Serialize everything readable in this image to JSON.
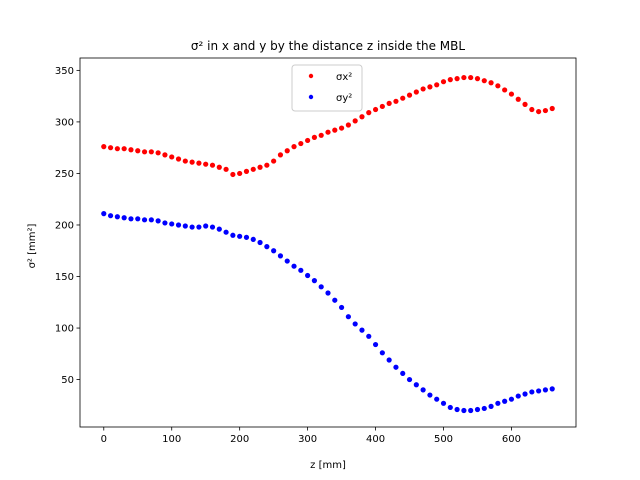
{
  "chart_data": {
    "type": "scatter",
    "title": "σ² in x and y by the distance z inside the MBL",
    "xlabel": "z [mm]",
    "ylabel": "σ² [mm²]",
    "xlim": [
      -35,
      695
    ],
    "ylim": [
      4,
      362
    ],
    "xticks": [
      0,
      100,
      200,
      300,
      400,
      500,
      600
    ],
    "yticks": [
      50,
      100,
      150,
      200,
      250,
      300,
      350
    ],
    "legend_position": "upper center",
    "grid": false,
    "series": [
      {
        "name": "σx²",
        "color": "#ff0000",
        "x": [
          0,
          10,
          20,
          30,
          40,
          50,
          60,
          70,
          80,
          90,
          100,
          110,
          120,
          130,
          140,
          150,
          160,
          170,
          180,
          190,
          200,
          210,
          220,
          230,
          240,
          250,
          260,
          270,
          280,
          290,
          300,
          310,
          320,
          330,
          340,
          350,
          360,
          370,
          380,
          390,
          400,
          410,
          420,
          430,
          440,
          450,
          460,
          470,
          480,
          490,
          500,
          510,
          520,
          530,
          540,
          550,
          560,
          570,
          580,
          590,
          600,
          610,
          620,
          630,
          640,
          650,
          660
        ],
        "y": [
          276,
          275,
          274,
          274,
          273,
          272,
          271,
          271,
          270,
          268,
          266,
          264,
          262,
          261,
          260,
          259,
          258,
          256,
          254,
          249,
          250,
          252,
          254,
          256,
          258,
          262,
          268,
          272,
          276,
          279,
          282,
          285,
          287,
          290,
          292,
          294,
          297,
          301,
          305,
          309,
          312,
          315,
          318,
          320,
          323,
          326,
          329,
          332,
          334,
          336,
          339,
          341,
          342,
          343,
          343,
          342,
          340,
          338,
          335,
          331,
          327,
          322,
          317,
          312,
          310,
          311,
          313
        ]
      },
      {
        "name": "σy²",
        "color": "#0000ff",
        "x": [
          0,
          10,
          20,
          30,
          40,
          50,
          60,
          70,
          80,
          90,
          100,
          110,
          120,
          130,
          140,
          150,
          160,
          170,
          180,
          190,
          200,
          210,
          220,
          230,
          240,
          250,
          260,
          270,
          280,
          290,
          300,
          310,
          320,
          330,
          340,
          350,
          360,
          370,
          380,
          390,
          400,
          410,
          420,
          430,
          440,
          450,
          460,
          470,
          480,
          490,
          500,
          510,
          520,
          530,
          540,
          550,
          560,
          570,
          580,
          590,
          600,
          610,
          620,
          630,
          640,
          650,
          660
        ],
        "y": [
          211,
          209,
          208,
          207,
          206,
          206,
          205,
          205,
          204,
          202,
          201,
          200,
          199,
          198,
          198,
          199,
          198,
          196,
          193,
          190,
          189,
          188,
          186,
          183,
          179,
          175,
          170,
          165,
          160,
          156,
          151,
          146,
          140,
          134,
          127,
          120,
          111,
          104,
          98,
          92,
          84,
          76,
          69,
          62,
          56,
          50,
          45,
          40,
          35,
          31,
          27,
          23,
          21,
          20,
          20,
          21,
          22,
          24,
          27,
          29,
          31,
          34,
          36,
          38,
          39,
          40,
          41
        ]
      }
    ]
  }
}
